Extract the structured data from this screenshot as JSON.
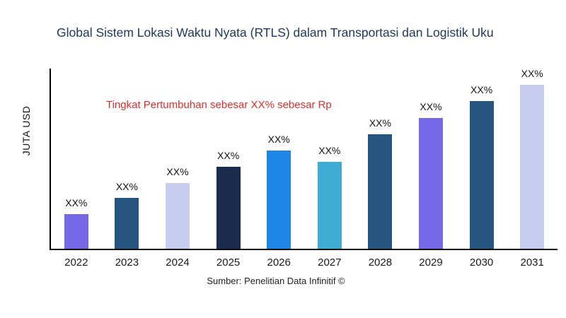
{
  "title": "Global Sistem Lokasi Waktu Nyata (RTLS) dalam Transportasi dan Logistik Uku",
  "annotation": "Tingkat Pertumbuhan sebesar XX% sebesar Rp",
  "ylabel": "JUTA USD",
  "source": "Sumber: Penelitian Data Infinitif ©",
  "colors": {
    "title": "#1F3864",
    "annotation": "#E82C2A",
    "axis": "#000000",
    "background": "#FFFFFF"
  },
  "chart_data": {
    "type": "bar",
    "title": "Global Sistem Lokasi Waktu Nyata (RTLS) dalam Transportasi dan Logistik Uku",
    "xlabel": "",
    "ylabel": "JUTA USD",
    "categories": [
      "2022",
      "2023",
      "2024",
      "2025",
      "2026",
      "2027",
      "2028",
      "2029",
      "2030",
      "2031"
    ],
    "values": [
      21,
      31,
      40,
      50,
      60,
      53,
      70,
      80,
      90,
      100
    ],
    "bar_labels": [
      "XX%",
      "XX%",
      "XX%",
      "XX%",
      "XX%",
      "XX%",
      "XX%",
      "XX%",
      "XX%",
      "XX%"
    ],
    "bar_colors": [
      "#7668E6",
      "#25557E",
      "#C8CDF0",
      "#1B2B4D",
      "#1E87E5",
      "#3FACD4",
      "#25557E",
      "#7668E6",
      "#25557E",
      "#C8CDF0"
    ],
    "ylim": [
      0,
      110
    ],
    "grid": false,
    "legend": "none",
    "annotation": "Tingkat Pertumbuhan sebesar XX% sebesar Rp"
  }
}
